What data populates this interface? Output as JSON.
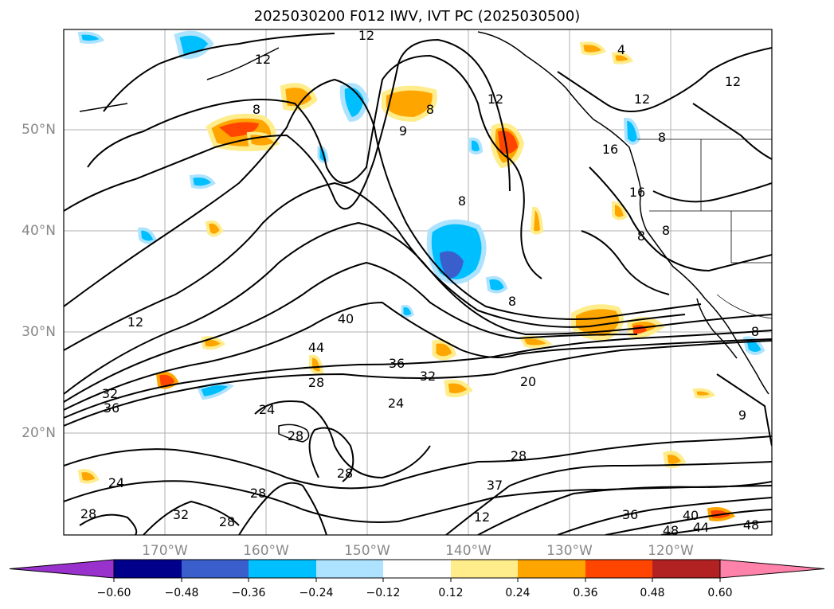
{
  "title": "2025030200 F012 IWV, IVT PC (2025030500)",
  "map": {
    "region": "North-East Pacific",
    "lon_range_deg": [
      -180,
      -110
    ],
    "lat_range_deg": [
      10,
      60
    ],
    "lat_ticks": [
      "20°N",
      "30°N",
      "40°N",
      "50°N"
    ],
    "lon_ticks": [
      "170°W",
      "160°W",
      "150°W",
      "140°W",
      "130°W",
      "120°W"
    ],
    "gridlines": true
  },
  "contour_labels": [
    "12",
    "12",
    "8",
    "9",
    "8",
    "12",
    "4",
    "12",
    "16",
    "16",
    "8",
    "8",
    "8",
    "12",
    "40",
    "44",
    "36",
    "32",
    "28",
    "24",
    "20",
    "32",
    "36",
    "28",
    "24",
    "28",
    "28",
    "28",
    "32",
    "37",
    "36",
    "40",
    "44",
    "48",
    "48",
    "28",
    "24",
    "8",
    "9",
    "8",
    "28",
    "12",
    "8",
    "12"
  ],
  "colorbar": {
    "colors": [
      "#9932CC",
      "#00008B",
      "#3A5FCD",
      "#00BFFF",
      "#ADE3FF",
      "#FFFFFF",
      "#FFEC8B",
      "#FFA500",
      "#FF4500",
      "#B22222",
      "#FF82AB"
    ],
    "tick_labels": [
      "−0.60",
      "−0.48",
      "−0.36",
      "−0.24",
      "−0.12",
      "0.12",
      "0.24",
      "0.36",
      "0.48",
      "0.60"
    ],
    "extend": "both"
  },
  "icons": {
    "colorbar_left": "triangle-left",
    "colorbar_right": "triangle-right"
  }
}
